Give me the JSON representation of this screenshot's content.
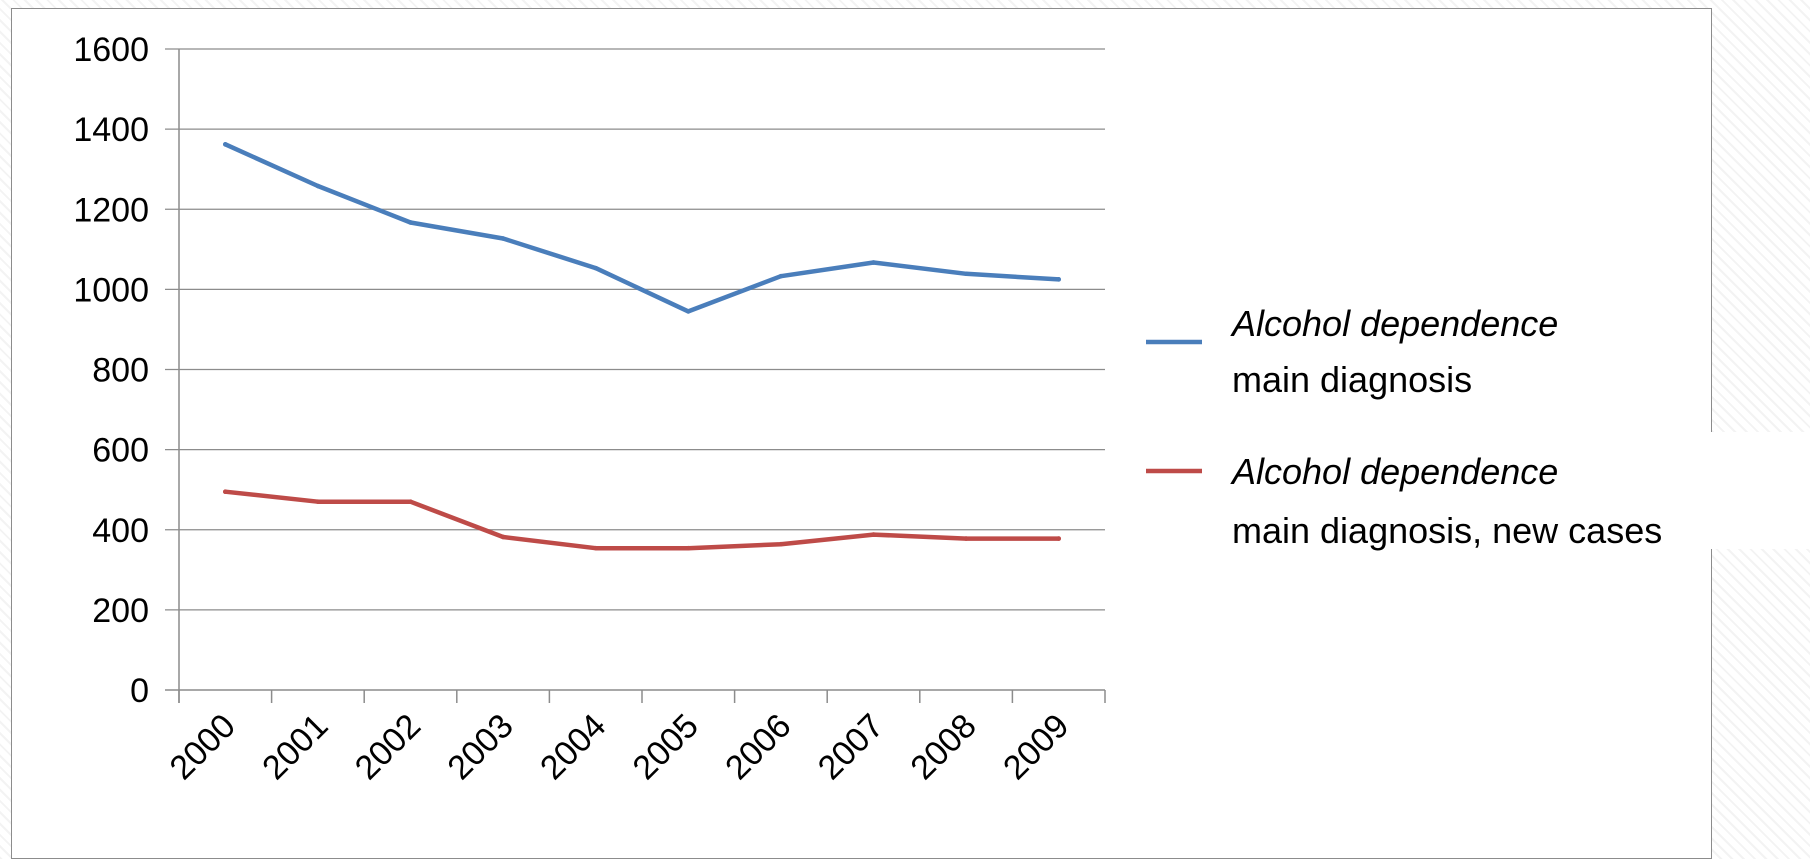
{
  "chart_data": {
    "type": "line",
    "title": "",
    "xlabel": "",
    "ylabel": "",
    "x": [
      "2000",
      "2001",
      "2002",
      "2003",
      "2004",
      "2005",
      "2006",
      "2007",
      "2008",
      "2009"
    ],
    "ylim": [
      0,
      1600
    ],
    "yticks": [
      0,
      200,
      400,
      600,
      800,
      1000,
      1200,
      1400,
      1600
    ],
    "grid": true,
    "legend_position": "right",
    "series": [
      {
        "name_italic": "Alcohol dependence",
        "name_rest": "main diagnosis",
        "color": "#4a7ebb",
        "values": [
          1362,
          1258,
          1167,
          1127,
          1053,
          945,
          1033,
          1067,
          1039,
          1025
        ]
      },
      {
        "name_italic": "Alcohol dependence",
        "name_rest": "main diagnosis, new cases",
        "color": "#be4b48",
        "values": [
          495,
          470,
          470,
          382,
          354,
          354,
          364,
          388,
          378,
          378
        ]
      }
    ]
  }
}
